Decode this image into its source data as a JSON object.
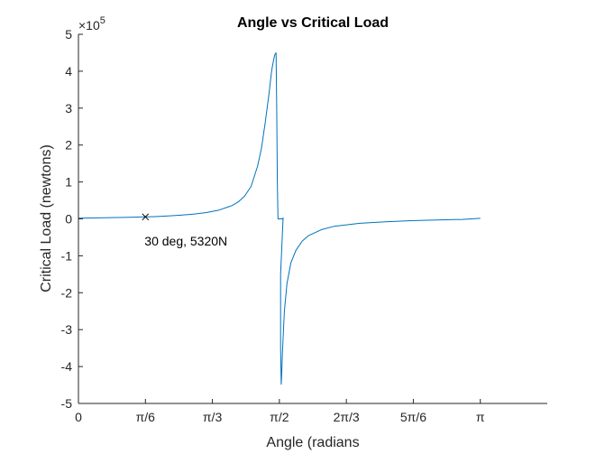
{
  "chart_data": {
    "type": "line",
    "title": "Angle vs Critical Load",
    "xlabel": "Angle (radians",
    "ylabel": "Critical Load (newtons)",
    "y_exponent_label": "×10",
    "y_exponent_power": "5",
    "xlim": [
      0,
      3.6652
    ],
    "ylim": [
      -5,
      5
    ],
    "x_ticks": [
      0,
      0.5236,
      1.0472,
      1.5708,
      2.0944,
      2.618,
      3.1416
    ],
    "x_tick_labels": [
      "0",
      "π/6",
      "π/3",
      "π/2",
      "2π/3",
      "5π/6",
      "π"
    ],
    "y_ticks": [
      -5,
      -4,
      -3,
      -2,
      -1,
      0,
      1,
      2,
      3,
      4,
      5
    ],
    "y_tick_labels": [
      "-5",
      "-4",
      "-3",
      "-2",
      "-1",
      "0",
      "1",
      "2",
      "3",
      "4",
      "5"
    ],
    "grid": false,
    "series": [
      {
        "color": "#0072BD",
        "x": [
          0,
          0.1,
          0.2,
          0.3,
          0.4,
          0.5236,
          0.6,
          0.7,
          0.8,
          0.9,
          1.0,
          1.1,
          1.2,
          1.25,
          1.3,
          1.35,
          1.4,
          1.43,
          1.46,
          1.49,
          1.51,
          1.525,
          1.535,
          1.545,
          1.55,
          1.555,
          1.56,
          1.56,
          1.57,
          1.5708,
          1.6,
          1.6,
          1.58,
          1.58,
          1.585,
          1.588,
          1.595,
          1.61,
          1.63,
          1.66,
          1.7,
          1.75,
          1.8,
          1.9,
          2.0,
          2.2,
          2.4,
          2.6,
          2.8,
          3.0,
          3.1416
        ],
        "y": [
          0.019,
          0.024,
          0.03,
          0.036,
          0.043,
          0.0532,
          0.062,
          0.078,
          0.1,
          0.13,
          0.17,
          0.24,
          0.36,
          0.46,
          0.62,
          0.88,
          1.42,
          1.9,
          2.6,
          3.4,
          4.0,
          4.3,
          4.45,
          4.5,
          3.0,
          1.0,
          0.03,
          0,
          0,
          0,
          0,
          0.03,
          -1.5,
          -3.5,
          -4.48,
          -4.3,
          -3.6,
          -2.5,
          -1.75,
          -1.2,
          -0.85,
          -0.6,
          -0.45,
          -0.29,
          -0.2,
          -0.12,
          -0.08,
          -0.05,
          -0.03,
          -0.015,
          0.015
        ]
      }
    ],
    "marker": {
      "x": 0.5236,
      "y": 0.0532,
      "symbol": "×"
    },
    "annotations": [
      {
        "text": "30 deg, 5320N",
        "x": 0.5236,
        "y": -0.6
      }
    ]
  }
}
